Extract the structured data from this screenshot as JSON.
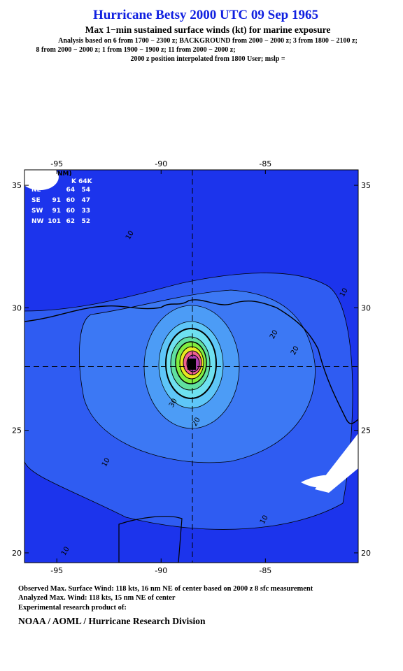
{
  "header": {
    "title": "Hurricane Betsy 2000 UTC 09 Sep 1965",
    "subtitle": "Max 1−min sustained surface winds (kt) for marine exposure",
    "analysis_lines": [
      "Analysis based on  6 from 1700 − 2300 z;  BACKGROUND from 2000 − 2000 z;  3 from 1800 − 2100 z;",
      "8 from 2000 − 2000 z;  1 from 1900 − 1900 z;  11 from 2000 − 2000 z;",
      "2000 z position interpolated from 1800 User; mslp ="
    ]
  },
  "map": {
    "xlim": [
      -96.55,
      -80.55
    ],
    "ylim": [
      19.6,
      35.63
    ],
    "xticks": [
      -95,
      -90,
      -85
    ],
    "yticks": [
      35,
      30,
      25,
      20
    ],
    "center": {
      "lon": -88.5,
      "lat": 27.6
    },
    "radii_table": {
      "header": [
        "NM)",
        "K 64K"
      ],
      "rows": [
        [
          "NE",
          null,
          "64",
          "54"
        ],
        [
          "SE",
          "91",
          "60",
          "47"
        ],
        [
          "SW",
          "91",
          "60",
          "33"
        ],
        [
          "NW",
          "101",
          "62",
          "52"
        ]
      ]
    },
    "contour_labels": [
      "10",
      "20",
      "30",
      "10",
      "20",
      "20",
      "10",
      "10",
      "10"
    ]
  },
  "footer": {
    "lines": [
      "Observed Max. Surface Wind: 118 kts, 16 nm NE of center based on 2000 z 8 sfc measurement",
      "Analyzed Max. Wind: 118 kts, 15 nm NE of center",
      "Experimental research product of:"
    ],
    "credit": "NOAA / AOML / Hurricane Research Division"
  }
}
